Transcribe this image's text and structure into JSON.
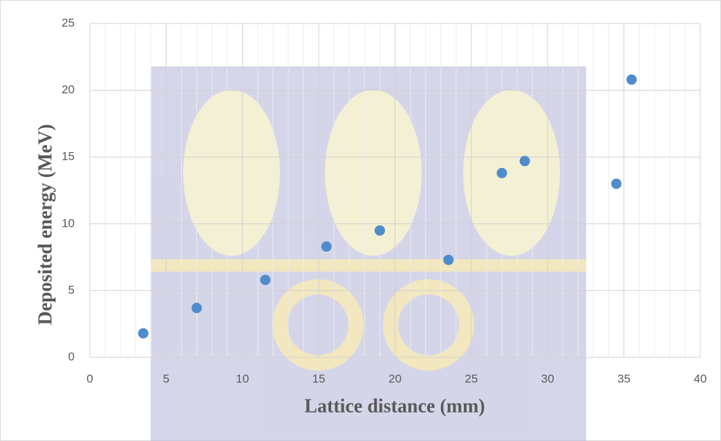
{
  "chart_data": {
    "type": "scatter",
    "xlabel": "Lattice distance (mm)",
    "ylabel": "Deposited energy (MeV)",
    "series": [
      {
        "color": "#4f8ccb",
        "x": [
          3.5,
          7,
          11.5,
          15.5,
          19,
          23.5,
          27,
          28.5,
          34.5,
          35.5
        ],
        "values": [
          1.8,
          3.7,
          5.8,
          8.3,
          9.5,
          7.3,
          13.8,
          14.7,
          13,
          20.8
        ]
      }
    ],
    "xlim": [
      0,
      40
    ],
    "xticks": [
      0,
      5,
      10,
      15,
      20,
      25,
      30,
      35,
      40
    ],
    "xminorticks": [
      1,
      2,
      3,
      4,
      6,
      7,
      8,
      9,
      11,
      12,
      13,
      14,
      16,
      17,
      18,
      19,
      21,
      22,
      23,
      24,
      26,
      27,
      28,
      29,
      31,
      32,
      33,
      34,
      36,
      37,
      38,
      39
    ],
    "ylim": [
      0,
      25
    ],
    "yticks": [
      0,
      5,
      10,
      15,
      20,
      25
    ],
    "grid": true
  }
}
